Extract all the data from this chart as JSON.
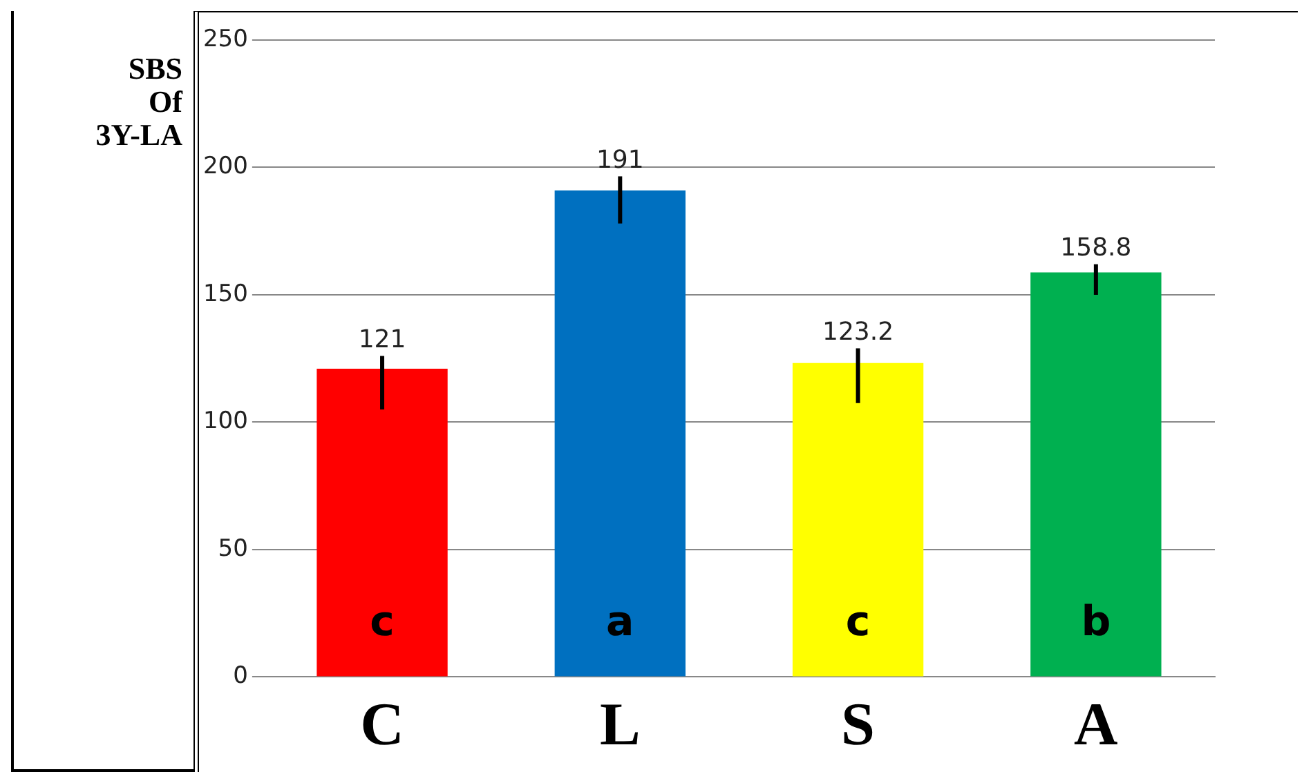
{
  "chart_data": {
    "type": "bar",
    "ylabel": "SBS\nOf\n3Y-LA",
    "categories": [
      "C",
      "L",
      "S",
      "A"
    ],
    "values": [
      121,
      191,
      123.2,
      158.8
    ],
    "colors": [
      "#ff0000",
      "#0070c0",
      "#ffff00",
      "#00b050"
    ],
    "errors": [
      [
        105,
        126
      ],
      [
        178,
        196.5
      ],
      [
        107.5,
        129
      ],
      [
        150,
        162
      ]
    ],
    "data_labels": true,
    "annotations": [
      "c",
      "a",
      "c",
      "b"
    ],
    "ylim": [
      0,
      250
    ],
    "yticks": [
      0,
      50,
      100,
      150,
      200,
      250
    ],
    "grid": "y",
    "legend": false
  }
}
